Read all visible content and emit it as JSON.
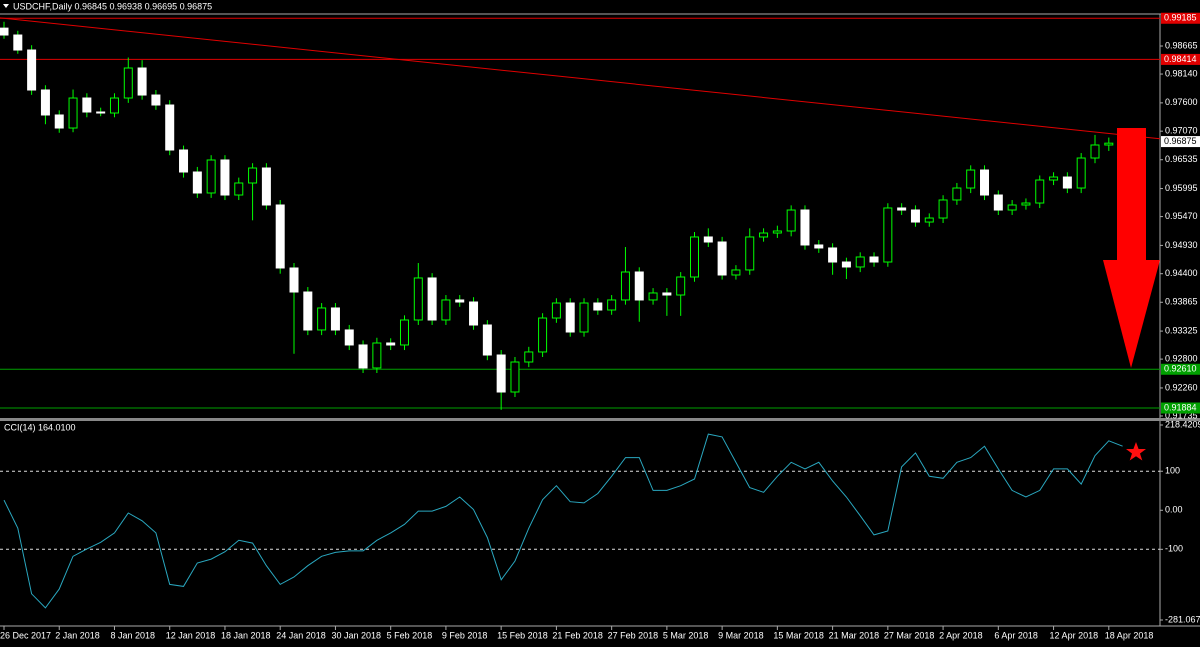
{
  "chart_data": [
    {
      "type": "candlestick",
      "title": "USDCHF,Daily  0.96845 0.96938 0.96695 0.96875",
      "categories": [
        "26 Dec 2017",
        null,
        null,
        null,
        "2 Jan 2018",
        null,
        null,
        null,
        "8 Jan 2018",
        null,
        null,
        null,
        "12 Jan 2018",
        null,
        null,
        null,
        "18 Jan 2018",
        null,
        null,
        null,
        "24 Jan 2018",
        null,
        null,
        null,
        "30 Jan 2018",
        null,
        null,
        null,
        "5 Feb 2018",
        null,
        null,
        null,
        "9 Feb 2018",
        null,
        null,
        null,
        "15 Feb 2018",
        null,
        null,
        null,
        "21 Feb 2018",
        null,
        null,
        null,
        "27 Feb 2018",
        null,
        null,
        null,
        "5 Mar 2018",
        null,
        null,
        null,
        "9 Mar 2018",
        null,
        null,
        null,
        "15 Mar 2018",
        null,
        null,
        null,
        "21 Mar 2018",
        null,
        null,
        null,
        "27 Mar 2018",
        null,
        null,
        null,
        "2 Apr 2018",
        null,
        null,
        null,
        "6 Apr 2018",
        null,
        null,
        null,
        "12 Apr 2018",
        null,
        null,
        null,
        "18 Apr 2018",
        null
      ],
      "open": [
        0.99,
        0.98871,
        0.9859,
        0.97841,
        0.97373,
        0.97129,
        0.97691,
        0.97429,
        0.9741,
        0.97691,
        0.98253,
        0.97747,
        0.9756,
        0.96717,
        0.96305,
        0.95912,
        0.9653,
        0.95874,
        0.96099,
        0.9638,
        0.95687,
        0.94507,
        0.94057,
        0.93346,
        0.93758,
        0.93346,
        0.93065,
        0.92634,
        0.93102,
        0.93065,
        0.93533,
        0.9432,
        0.93533,
        0.93908,
        0.9387,
        0.93439,
        0.92877,
        0.92184,
        0.92746,
        0.92934,
        0.9357,
        0.93851,
        0.93308,
        0.93851,
        0.9372,
        0.93908,
        0.94432,
        0.93908,
        0.94039,
        0.94001,
        0.94338,
        0.95088,
        0.94994,
        0.94376,
        0.9447,
        0.95088,
        0.95162,
        0.952,
        0.95593,
        0.94938,
        0.94882,
        0.94619,
        0.94526,
        0.94713,
        0.94619,
        0.95631,
        0.95593,
        0.95368,
        0.95443,
        0.95781,
        0.96005,
        0.96342,
        0.95874,
        0.95593,
        0.95687,
        0.95724,
        0.96155,
        0.96211,
        0.96005,
        0.96567,
        0.96811,
        0.96845
      ],
      "high": [
        0.9912,
        0.9895,
        0.9868,
        0.9793,
        0.9746,
        0.9785,
        0.9778,
        0.9751,
        0.9778,
        0.9845,
        0.984,
        0.9784,
        0.9765,
        0.968,
        0.964,
        0.9662,
        0.9662,
        0.962,
        0.9647,
        0.9647,
        0.9578,
        0.946,
        0.9415,
        0.9385,
        0.9385,
        0.9344,
        0.9315,
        0.932,
        0.9319,
        0.9362,
        0.946,
        0.9441,
        0.94,
        0.94,
        0.9396,
        0.9353,
        0.9297,
        0.9284,
        0.9303,
        0.9366,
        0.9394,
        0.9394,
        0.9394,
        0.9394,
        0.94,
        0.949,
        0.9452,
        0.9413,
        0.9413,
        0.9443,
        0.9518,
        0.9525,
        0.9509,
        0.9456,
        0.9525,
        0.9525,
        0.953,
        0.9568,
        0.9568,
        0.9503,
        0.9497,
        0.947,
        0.948,
        0.948,
        0.9572,
        0.9572,
        0.9568,
        0.9553,
        0.9587,
        0.961,
        0.9643,
        0.9643,
        0.9596,
        0.9578,
        0.9581,
        0.9624,
        0.963,
        0.963,
        0.9666,
        0.97,
        0.9695,
        0.96938
      ],
      "low": [
        0.988,
        0.9852,
        0.9775,
        0.972,
        0.9704,
        0.9705,
        0.9733,
        0.9735,
        0.9733,
        0.976,
        0.9766,
        0.9747,
        0.9662,
        0.962,
        0.9582,
        0.9582,
        0.9578,
        0.9578,
        0.954,
        0.956,
        0.944,
        0.929,
        0.9325,
        0.9325,
        0.9325,
        0.9297,
        0.9254,
        0.9254,
        0.9297,
        0.9297,
        0.9344,
        0.9344,
        0.9344,
        0.9378,
        0.9335,
        0.9278,
        0.9185,
        0.9209,
        0.9265,
        0.9284,
        0.9348,
        0.9322,
        0.9322,
        0.9363,
        0.9363,
        0.9382,
        0.935,
        0.9382,
        0.9361,
        0.9361,
        0.9425,
        0.949,
        0.9429,
        0.9429,
        0.9438,
        0.95,
        0.9507,
        0.951,
        0.9485,
        0.9479,
        0.9438,
        0.943,
        0.9443,
        0.9453,
        0.9453,
        0.955,
        0.9528,
        0.9528,
        0.9535,
        0.9569,
        0.9591,
        0.9578,
        0.955,
        0.955,
        0.956,
        0.9563,
        0.9606,
        0.9591,
        0.9591,
        0.9647,
        0.967,
        0.96695
      ],
      "close": [
        0.98871,
        0.9859,
        0.97841,
        0.97373,
        0.97129,
        0.97691,
        0.97429,
        0.9741,
        0.97691,
        0.98253,
        0.97747,
        0.9756,
        0.96717,
        0.96305,
        0.95912,
        0.9653,
        0.95874,
        0.96099,
        0.9638,
        0.95687,
        0.94507,
        0.94057,
        0.93346,
        0.93758,
        0.93346,
        0.93065,
        0.92634,
        0.93102,
        0.93065,
        0.93533,
        0.9432,
        0.93533,
        0.93908,
        0.9387,
        0.93439,
        0.92877,
        0.92184,
        0.92746,
        0.92934,
        0.9357,
        0.93851,
        0.93308,
        0.93851,
        0.9372,
        0.93908,
        0.94432,
        0.93908,
        0.94039,
        0.94001,
        0.94338,
        0.95088,
        0.94994,
        0.94376,
        0.9447,
        0.95088,
        0.95162,
        0.952,
        0.95593,
        0.94938,
        0.94882,
        0.94619,
        0.94526,
        0.94713,
        0.94619,
        0.95631,
        0.95593,
        0.95368,
        0.95443,
        0.95781,
        0.96005,
        0.96342,
        0.95874,
        0.95593,
        0.95687,
        0.95724,
        0.96155,
        0.96211,
        0.96005,
        0.96567,
        0.96811,
        0.96845,
        0.96875
      ],
      "bull_color": "#000000",
      "bear_color": "#ffffff",
      "wick_color": "#00ff00",
      "ylim": [
        0.91697,
        0.99246
      ],
      "yticks": [
        0.98665,
        {
          "value": 0.9814,
          "label": "0.98140"
        },
        {
          "value": 0.976,
          "label": "0.97600"
        },
        {
          "value": 0.9707,
          "label": "0.97070"
        },
        0.96535,
        0.95995,
        {
          "value": 0.9547,
          "label": "0.95470"
        },
        {
          "value": 0.9493,
          "label": "0.94930"
        },
        {
          "value": 0.944,
          "label": "0.94400"
        },
        0.93865,
        0.93325,
        {
          "value": 0.928,
          "label": "0.92800"
        },
        {
          "value": 0.9226,
          "label": "0.92260"
        },
        0.91735
      ],
      "levels": [
        {
          "price": 0.99185,
          "color": "#e00000"
        },
        {
          "price": 0.98414,
          "color": "#e00000"
        },
        {
          "price": 0.9261,
          "label": "0.92610",
          "color": "#00a000"
        },
        {
          "price": 0.91884,
          "color": "#00a000"
        }
      ],
      "trendline": {
        "from_index": 0,
        "from_price": 0.99184,
        "to_index": 81,
        "to_price": 0.97,
        "color": "#e00000"
      }
    },
    {
      "type": "line",
      "title": "CCI(14) 164.0100",
      "values": [
        26,
        -46,
        -214,
        -250,
        -202,
        -118,
        -99,
        -82,
        -58,
        -7,
        -27,
        -58,
        -190,
        -195,
        -135,
        -125,
        -106,
        -77,
        -84,
        -142,
        -190,
        -171,
        -142,
        -118,
        -108,
        -104,
        -104,
        -77,
        -58,
        -36,
        -2,
        -2,
        10,
        34,
        2,
        -70,
        -178,
        -130,
        -46,
        27,
        63,
        22,
        19,
        43,
        87,
        135,
        135,
        51,
        51,
        63,
        80,
        195,
        188,
        123,
        58,
        46,
        87,
        123,
        106,
        123,
        75,
        34,
        -14,
        -63,
        -53,
        111,
        147,
        87,
        82,
        123,
        135,
        164,
        106,
        51,
        34,
        51,
        106,
        106,
        67,
        140,
        178,
        164.01
      ],
      "color": "#2aa8c0",
      "ylim": [
        -281.0679,
        218.4209
      ],
      "yticks": [
        218.4209,
        100,
        {
          "value": 0,
          "label": "0.00"
        },
        -100,
        -281.0679
      ],
      "level_lines": [
        100,
        -100
      ]
    }
  ]
}
